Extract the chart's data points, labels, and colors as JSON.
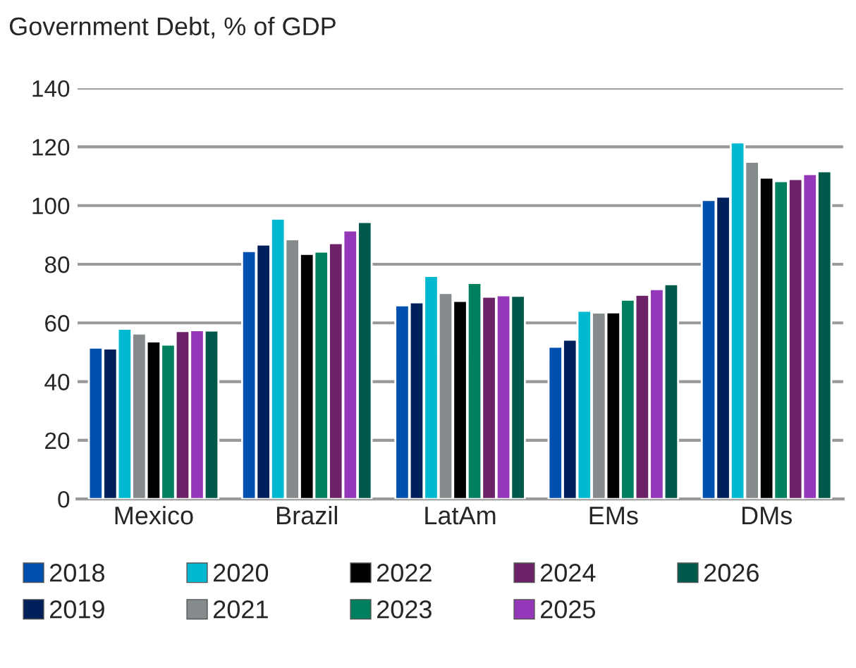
{
  "chart_data": {
    "type": "bar",
    "title": "Government Debt, % of GDP",
    "categories": [
      "Mexico",
      "Brazil",
      "LatAm",
      "EMs",
      "DMs"
    ],
    "series": [
      {
        "name": "2018",
        "color": "#0050b0",
        "values": [
          51.6,
          84.5,
          66,
          51.9,
          101.9
        ]
      },
      {
        "name": "2019",
        "color": "#00205b",
        "values": [
          51.3,
          86.7,
          67,
          54.3,
          103
        ]
      },
      {
        "name": "2020",
        "color": "#00b8d0",
        "values": [
          58,
          95.5,
          76,
          64.1,
          121.5
        ]
      },
      {
        "name": "2021",
        "color": "#858a8c",
        "values": [
          56.4,
          88.5,
          70.2,
          63.5,
          114.9
        ]
      },
      {
        "name": "2022",
        "color": "#000000",
        "values": [
          53.7,
          83.5,
          67.5,
          63.6,
          109.5
        ]
      },
      {
        "name": "2023",
        "color": "#00805f",
        "values": [
          52.6,
          84.3,
          73.6,
          67.9,
          108.3
        ]
      },
      {
        "name": "2024",
        "color": "#6c2266",
        "values": [
          57.2,
          87.2,
          68.9,
          69.6,
          109
        ]
      },
      {
        "name": "2025",
        "color": "#9437b8",
        "values": [
          57.5,
          91.5,
          69.4,
          71.5,
          110.7
        ]
      },
      {
        "name": "2026",
        "color": "#00594a",
        "values": [
          57.4,
          94.4,
          69.2,
          73.2,
          111.7
        ]
      }
    ],
    "ylim": [
      0,
      140
    ],
    "yticks": [
      0,
      20,
      40,
      60,
      80,
      100,
      120,
      140
    ],
    "grid": "y",
    "legend": "bottom"
  }
}
